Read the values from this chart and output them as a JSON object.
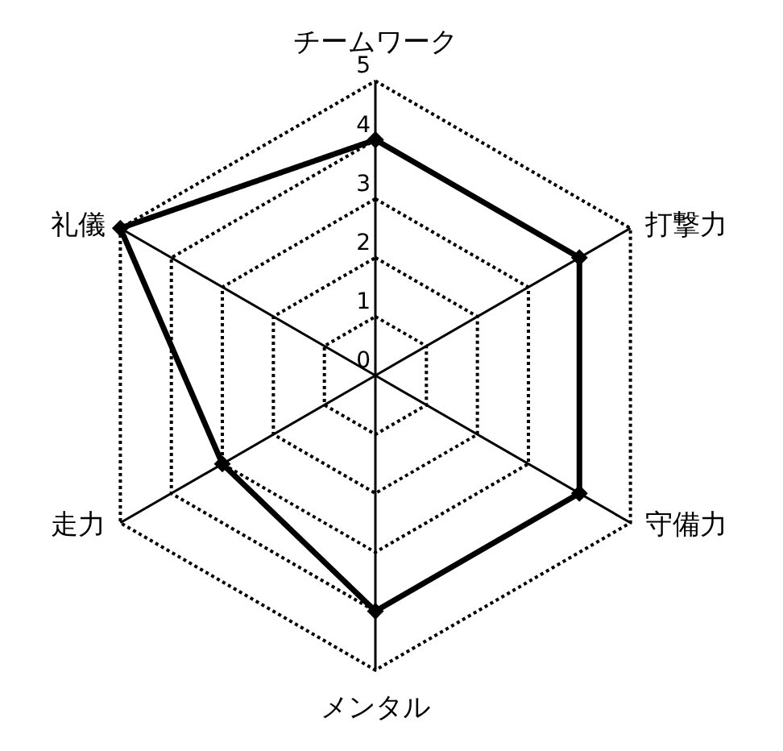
{
  "chart_data": {
    "type": "radar",
    "categories": [
      "チームワーク",
      "打撃力",
      "守備力",
      "メンタル",
      "走力",
      "礼儀"
    ],
    "series": [
      {
        "color": "#000000",
        "values": [
          4,
          4,
          4,
          4,
          3,
          5
        ]
      }
    ],
    "ylim": [
      0,
      5
    ],
    "yticks": [
      0,
      1,
      2,
      3,
      4,
      5
    ],
    "grid": true,
    "marker": "diamond",
    "line_style": "solid"
  }
}
